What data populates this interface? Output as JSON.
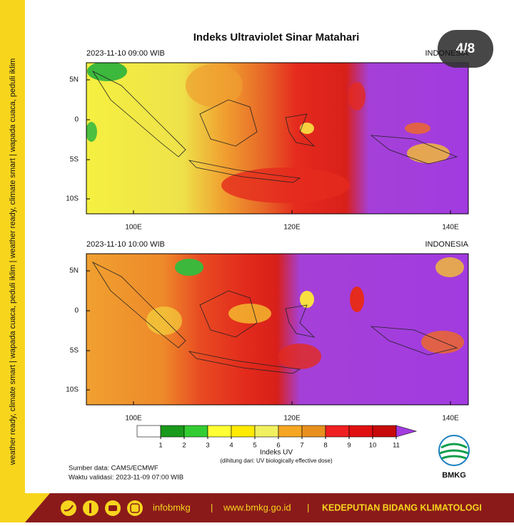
{
  "sidebar": "weather ready, climate smart  |  wapada cuaca, peduli iklim  |  weather ready, climate smart  |  wapada cuaca, peduli iklim",
  "title": "Indeks Ultraviolet Sinar Matahari",
  "badge": "4/8",
  "axes": {
    "lat_labels": [
      "5N",
      "0",
      "5S",
      "10S"
    ],
    "lon_labels": [
      "100E",
      "120E",
      "140E"
    ]
  },
  "panels": [
    {
      "time": "2023-11-10  09:00 WIB",
      "region": "INDONESIA"
    },
    {
      "time": "2023-11-10  10:00 WIB",
      "region": "INDONESIA"
    }
  ],
  "colorbar": {
    "colors": [
      "#ffffff",
      "#1a9a1a",
      "#33cc33",
      "#ffff33",
      "#ffea00",
      "#f0f060",
      "#f5a623",
      "#e8901e",
      "#f02020",
      "#e01010",
      "#c80a0a",
      "#a23be0"
    ],
    "ticks": [
      1,
      2,
      3,
      4,
      5,
      6,
      7,
      8,
      9,
      10,
      11
    ],
    "label": "Indeks UV",
    "note": "(dihitung dari: UV biologically effective dose)"
  },
  "source": "Sumber data: CAMS/ECMWF",
  "validity": "Waktu validasi: 2023-11-09 07:00 WIB",
  "logo": "BMKG",
  "footer": {
    "handle": "infobmkg",
    "sep1": "|",
    "url": "www.bmkg.go.id",
    "sep2": "|",
    "dept": "KEDEPUTIAN BIDANG KLIMATOLOGI"
  }
}
